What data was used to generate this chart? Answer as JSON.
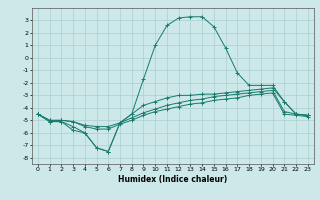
{
  "xlabel": "Humidex (Indice chaleur)",
  "background_color": "#cce8e8",
  "grid_color": "#aacfcf",
  "line_color": "#1a7a6e",
  "xlim": [
    -0.5,
    23.5
  ],
  "ylim": [
    -8.5,
    4.0
  ],
  "xticks": [
    0,
    1,
    2,
    3,
    4,
    5,
    6,
    7,
    8,
    9,
    10,
    11,
    12,
    13,
    14,
    15,
    16,
    17,
    18,
    19,
    20,
    21,
    22,
    23
  ],
  "yticks": [
    -8,
    -7,
    -6,
    -5,
    -4,
    -3,
    -2,
    -1,
    0,
    1,
    2,
    3
  ],
  "line1_x": [
    0,
    1,
    2,
    3,
    4,
    5,
    6,
    7,
    8,
    9,
    10,
    11,
    12,
    13,
    14,
    15,
    16,
    17,
    18,
    19,
    20,
    21,
    22,
    23
  ],
  "line1_y": [
    -4.5,
    -5.1,
    -5.1,
    -5.8,
    -6.0,
    -7.2,
    -7.5,
    -5.2,
    -4.5,
    -3.8,
    -3.5,
    -3.2,
    -3.0,
    -3.0,
    -2.9,
    -2.9,
    -2.8,
    -2.7,
    -2.6,
    -2.5,
    -2.4,
    -3.5,
    -4.5,
    -4.6
  ],
  "line2_x": [
    0,
    1,
    2,
    3,
    4,
    5,
    6,
    7,
    8,
    9,
    10,
    11,
    12,
    13,
    14,
    15,
    16,
    17,
    18,
    19,
    20,
    21,
    22,
    23
  ],
  "line2_y": [
    -4.5,
    -5.0,
    -5.0,
    -5.1,
    -5.5,
    -5.7,
    -5.7,
    -5.3,
    -5.0,
    -4.6,
    -4.3,
    -4.1,
    -3.9,
    -3.7,
    -3.6,
    -3.4,
    -3.3,
    -3.2,
    -3.0,
    -2.9,
    -2.8,
    -4.5,
    -4.6,
    -4.7
  ],
  "line3_x": [
    0,
    1,
    2,
    3,
    4,
    5,
    6,
    7,
    8,
    9,
    10,
    11,
    12,
    13,
    14,
    15,
    16,
    17,
    18,
    19,
    20,
    21,
    22,
    23
  ],
  "line3_y": [
    -4.5,
    -5.0,
    -5.0,
    -5.1,
    -5.4,
    -5.5,
    -5.5,
    -5.2,
    -4.8,
    -4.4,
    -4.1,
    -3.8,
    -3.6,
    -3.4,
    -3.3,
    -3.1,
    -3.0,
    -2.9,
    -2.8,
    -2.7,
    -2.6,
    -4.3,
    -4.5,
    -4.6
  ],
  "line4_x": [
    0,
    1,
    2,
    3,
    4,
    5,
    6,
    7,
    8,
    9,
    10,
    11,
    12,
    13,
    14,
    15,
    16,
    17,
    18,
    19,
    20,
    21,
    22,
    23
  ],
  "line4_y": [
    -4.5,
    -5.1,
    -5.1,
    -5.5,
    -6.0,
    -7.2,
    -7.5,
    -5.2,
    -4.5,
    -1.7,
    1.0,
    2.6,
    3.2,
    3.3,
    3.3,
    2.5,
    0.8,
    -1.2,
    -2.2,
    -2.2,
    -2.2,
    -3.5,
    -4.5,
    -4.6
  ]
}
